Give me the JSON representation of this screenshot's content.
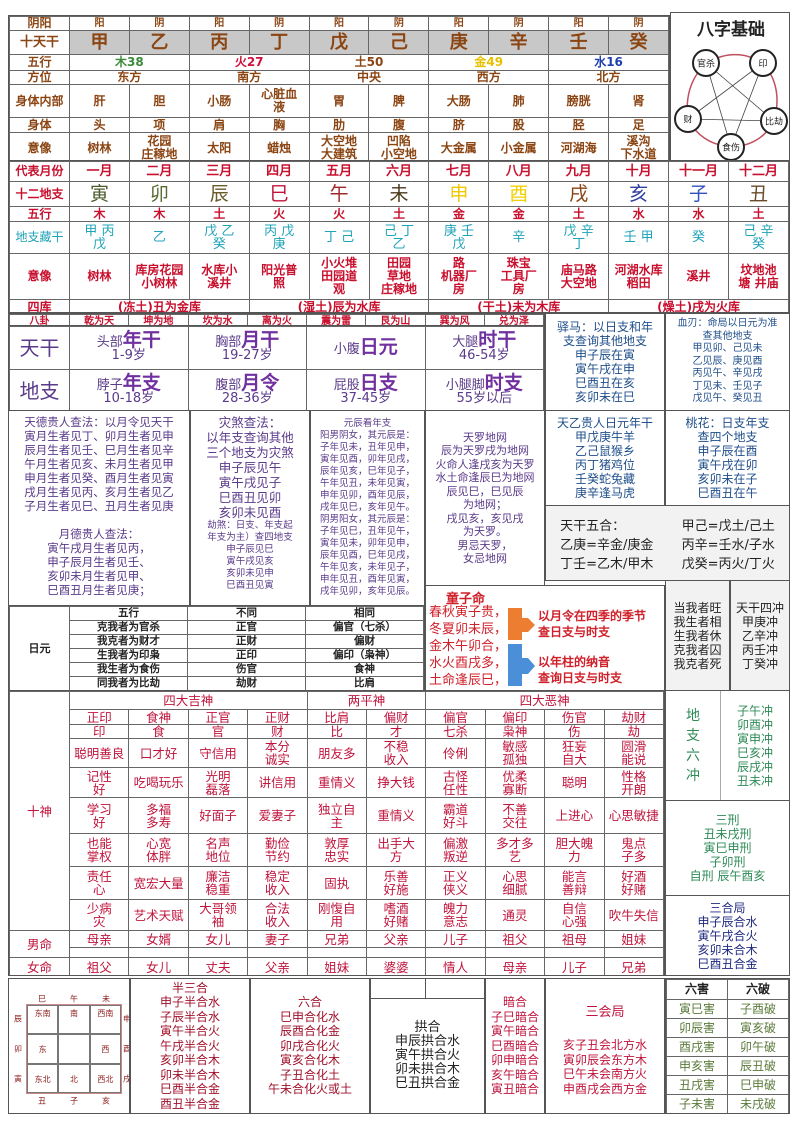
{
  "stems_table": {
    "rows": [
      {
        "label": "阴阳",
        "cells": [
          "阳",
          "阴",
          "阳",
          "阴",
          "阳",
          "阴",
          "阳",
          "阴",
          "阳",
          "阴"
        ]
      },
      {
        "label": "十天干",
        "cells": [
          "甲",
          "乙",
          "丙",
          "丁",
          "戊",
          "己",
          "庚",
          "辛",
          "壬",
          "癸"
        ]
      },
      {
        "label": "五行",
        "pairs": [
          {
            "text": "木38",
            "color": "#3a8a3a"
          },
          {
            "text": "火27",
            "color": "#d0103a"
          },
          {
            "text": "土50",
            "color": "#8b4513"
          },
          {
            "text": "金49",
            "color": "#e8c000"
          },
          {
            "text": "水16",
            "color": "#2040b0"
          }
        ]
      },
      {
        "label": "方位",
        "pairs": [
          {
            "text": "东方"
          },
          {
            "text": "南方"
          },
          {
            "text": "中央"
          },
          {
            "text": "西方"
          },
          {
            "text": "北方"
          }
        ]
      },
      {
        "label": "身体内部",
        "cells": [
          "肝",
          "胆",
          "小肠",
          "心脏血\n液",
          "胃",
          "脾",
          "大肠",
          "肺",
          "膀胱",
          "肾"
        ]
      },
      {
        "label": "身体",
        "cells": [
          "头",
          "项",
          "肩",
          "胸",
          "肋",
          "腹",
          "脐",
          "股",
          "胫",
          "足"
        ]
      },
      {
        "label": "意像",
        "cells": [
          "树林",
          "花园\n庄稼地",
          "太阳",
          "蜡烛",
          "大空地\n大建筑",
          "凹陷\n小空地",
          "大金属",
          "小金属",
          "河湖海",
          "溪沟\n下水道"
        ]
      }
    ]
  },
  "diagram": {
    "title": "八字基础",
    "nodes": [
      "官杀",
      "印",
      "比劫",
      "食伤",
      "财"
    ]
  },
  "branch_table": {
    "months": {
      "label": "代表月份",
      "cells": [
        "一月",
        "二月",
        "三月",
        "四月",
        "五月",
        "六月",
        "七月",
        "八月",
        "九月",
        "十月",
        "十一月",
        "十二月"
      ]
    },
    "branches": {
      "label": "十二地支",
      "cells": [
        {
          "text": "寅",
          "color": "#4a5a2a"
        },
        {
          "text": "卯",
          "color": "#556b2f"
        },
        {
          "text": "辰",
          "color": "#6b5a2a"
        },
        {
          "text": "巳",
          "color": "#c0143c"
        },
        {
          "text": "午",
          "color": "#a0282a"
        },
        {
          "text": "未",
          "color": "#4a3a1a"
        },
        {
          "text": "申",
          "color": "#f0c800"
        },
        {
          "text": "酉",
          "color": "#f0d000"
        },
        {
          "text": "戌",
          "color": "#8b4513"
        },
        {
          "text": "亥",
          "color": "#3040a0"
        },
        {
          "text": "子",
          "color": "#3050c0"
        },
        {
          "text": "丑",
          "color": "#6b4a2a"
        }
      ]
    },
    "elements": {
      "label": "五行",
      "cells": [
        "木",
        "木",
        "土",
        "火",
        "火",
        "土",
        "金",
        "金",
        "土",
        "水",
        "水",
        "土"
      ]
    },
    "hidden": {
      "label": "地支藏干",
      "cells": [
        "甲 丙\n戊",
        "乙",
        "戊 乙\n癸",
        "丙 戊\n庚",
        "丁 己",
        "己 丁\n乙",
        "庚 壬\n戊",
        "辛",
        "戊 辛\n丁",
        "壬 甲",
        "癸",
        "己 辛\n癸"
      ]
    },
    "imagery": {
      "label": "意像",
      "cells": [
        "树林",
        "库房花园\n小树林",
        "水库小\n溪井",
        "阳光普\n照",
        "小火堆\n田园道\n观",
        "田园\n草地\n庄稼地",
        "路\n机器厂\n房",
        "珠宝\n工具厂\n房",
        "庙马路\n大空地",
        "河湖水库\n稻田",
        "溪井",
        "坟地池\n塘 井庙"
      ]
    },
    "vaults": {
      "label": "四库",
      "cells": [
        "(冻土)丑为金库",
        "(湿土)辰为水库",
        "(干土)未为木库",
        "(燥土)戌为火库"
      ]
    }
  },
  "bagua": {
    "label": "八卦",
    "cells": [
      "乾为天",
      "坤为地",
      "坎为水",
      "离为火",
      "震为雷",
      "艮为山",
      "巽为风",
      "兑为泽"
    ]
  },
  "palaces": {
    "rows": [
      {
        "label": "天干",
        "cells": [
          {
            "part": "头部",
            "pillar": "年干",
            "age": "1-9岁"
          },
          {
            "part": "胸部",
            "pillar": "月干",
            "age": "19-27岁"
          },
          {
            "part": "小腹",
            "pillar": "日元",
            "age": ""
          },
          {
            "part": "大腿",
            "pillar": "时干",
            "age": "46-54岁"
          }
        ]
      },
      {
        "label": "地支",
        "cells": [
          {
            "part": "脖子",
            "pillar": "年支",
            "age": "10-18岁"
          },
          {
            "part": "腹部",
            "pillar": "月令",
            "age": "28-36岁"
          },
          {
            "part": "屁股",
            "pillar": "日支",
            "age": "37-45岁"
          },
          {
            "part": "小腿脚",
            "pillar": "时支",
            "age": "55岁以后"
          }
        ]
      }
    ]
  },
  "yima": {
    "lines": [
      "驿马：以日支和年",
      "支查询其他地支",
      "申子辰在寅",
      "寅午戌在申",
      "巳酉丑在亥",
      "亥卯未在巳"
    ]
  },
  "xueren": {
    "lines": [
      "血刃：命局以日元为准",
      "查其他地支",
      "甲见卯、己见未",
      "乙见辰、庚见酉",
      "丙见午、辛见戌",
      "丁见未、壬见子",
      "戊见午、癸见丑"
    ]
  },
  "tianyi": {
    "lines": [
      "天乙贵人日元年干",
      "甲戊庚牛羊",
      "乙己鼠猴乡",
      "丙丁猪鸡位",
      "壬癸蛇兔藏",
      "庚辛逢马虎"
    ]
  },
  "taohua": {
    "lines": [
      "桃花：日支年支",
      "查四个地支",
      "申子辰在酉",
      "寅午戌在卯",
      "亥卯未在子",
      "巳酉丑在午"
    ]
  },
  "tiande": {
    "lines": [
      "天德贵人查法：以月令见天干",
      "寅月生者见丁、卯月生者见申",
      "辰月生者见壬、巳月生者见辛",
      "午月生者见亥、未月生者见甲",
      "申月生者见癸、酉月生者见寅",
      "戌月生者见丙、亥月生者见乙",
      "子月生者见巳、丑月生者见庚"
    ],
    "lines2": [
      "月德贵人查法：",
      "寅午戌月生者见丙，",
      "申子辰月生者见壬、",
      "亥卯未月生者见甲、",
      "巳酉丑月生者见庚；"
    ]
  },
  "zaisha": {
    "lines": [
      "灾煞查法：",
      "以年支查询其他",
      "三个地支为灾煞",
      "申子辰见午",
      "寅午戌见子",
      "巳酉丑见卯",
      "亥卯未见酉"
    ],
    "lines2": [
      "劫煞：日支、年支起",
      "年支为主）查四地支",
      "申子辰见巳",
      "寅午戌见亥",
      "亥卯未见申",
      "巳酉丑见寅"
    ]
  },
  "yuanchen": {
    "lines": [
      "元辰看年支",
      "阳男阴女，其元辰是：",
      "子年见未，丑年见申，",
      "寅年见酉，卯年见戌，",
      "辰年见亥，巳年见子，",
      "午年见丑，未年见寅，",
      "申年见卯，酉年见辰，",
      "戌年见巳，亥年见午。",
      "阴男阳女，其元辰是：",
      "子年见巳，丑年见午，",
      "寅年见未，卯年见申，",
      "辰年见酉，巳年见戌，",
      "午年见亥，未年见子，",
      "申年见丑，酉年见寅，",
      "戌年见卯，亥年见辰。"
    ]
  },
  "tianluo": {
    "lines": [
      "天罗地网",
      "辰为天罗戌为地网",
      "火命人逢戌亥为天罗",
      "水土命逢辰巳为地网",
      "辰见巳，巳见辰",
      "为地网；",
      "戌见亥，亥见戌",
      "为天罗。",
      "男忌天罗，",
      "女忌地网"
    ]
  },
  "wuhe": {
    "left": [
      "天干五合：",
      "乙庚=辛金/庚金",
      "丁壬=乙木/甲木"
    ],
    "right": [
      "甲己=戊土/己土",
      "丙辛=壬水/子水",
      "戊癸=丙火/丁火"
    ]
  },
  "riyuan": {
    "label": "日元",
    "rows": [
      [
        "五行",
        "不同",
        "相同"
      ],
      [
        "克我者为官杀",
        "正官",
        "偏官（七杀）"
      ],
      [
        "我克者为财才",
        "正财",
        "偏财"
      ],
      [
        "生我者为印枭",
        "正印",
        "偏印（枭神）"
      ],
      [
        "我生者为食伤",
        "伤官",
        "食神"
      ],
      [
        "同我者为比劫",
        "劫财",
        "比肩"
      ]
    ]
  },
  "tongzi": {
    "title": "童子命",
    "lines": [
      "春秋寅子贵，",
      "冬夏卯未辰，",
      "金木午卯合，",
      "水火酉戌多，",
      "土命逢辰巳，"
    ],
    "note1": [
      "以月令在四季的季节",
      "查日支与时支"
    ],
    "note2": [
      "以年柱的纳音",
      "查询日支与时支"
    ],
    "colors": {
      "arrow1": "#ed7d31",
      "arrow2": "#4a8fd8"
    }
  },
  "wangxiang": {
    "lines": [
      "当我者旺",
      "我生者相",
      "生我者休",
      "克我者囚",
      "我克者死"
    ]
  },
  "sichong": {
    "lines": [
      "天干四冲",
      "甲庚冲",
      "乙辛冲",
      "丙壬冲",
      "丁癸冲"
    ]
  },
  "shishen": {
    "label": "十神",
    "groups": [
      "四大吉神",
      "两平神",
      "四大恶神"
    ],
    "names": [
      "正印",
      "食神",
      "正官",
      "正财",
      "比肩",
      "偏财",
      "偏官",
      "偏印",
      "伤官",
      "劫财"
    ],
    "short": [
      "印",
      "食",
      "官",
      "财",
      "比",
      "才",
      "七杀",
      "枭神",
      "伤",
      "劫"
    ],
    "traits": [
      [
        "聪明善良",
        "口才好",
        "守信用",
        "本分\n诚实",
        "朋友多",
        "不稳\n收入",
        "伶俐",
        "敏感\n孤独",
        "狂妄\n自大",
        "圆滑\n能说"
      ],
      [
        "记性\n好",
        "吃喝玩乐",
        "光明\n磊落",
        "讲信用",
        "重情义",
        "挣大钱",
        "古怪\n任性",
        "优柔\n寡断",
        "聪明",
        "性格\n开朗"
      ],
      [
        "学习\n好",
        "多福\n多寿",
        "好面子",
        "爱妻子",
        "独立自\n主",
        "重情义",
        "霸道\n好斗",
        "不善\n交往",
        "上进心",
        "心思敏捷"
      ],
      [
        "也能\n掌权",
        "心宽\n体胖",
        "名声\n地位",
        "勤俭\n节约",
        "敦厚\n忠实",
        "出手大\n方",
        "偏激\n叛逆",
        "多才多\n艺",
        "胆大魄\n力",
        "鬼点\n子多"
      ],
      [
        "责任\n心",
        "宽宏大量",
        "廉洁\n稳重",
        "稳定\n收入",
        "固执",
        "乐善\n好施",
        "正义\n侠义",
        "心思\n细腻",
        "能言\n善辩",
        "好酒\n好赌"
      ],
      [
        "少病\n灾",
        "艺术天赋",
        "大哥领\n袖",
        "合法\n收入",
        "刚愎自\n用",
        "嗜酒\n好赌",
        "魄力\n意志",
        "通灵",
        "自信\n心强",
        "吹牛失信"
      ]
    ],
    "male": {
      "label": "男命",
      "cells": [
        "母亲",
        "女婿",
        "女儿",
        "妻子",
        "兄弟",
        "父亲",
        "儿子",
        "祖父",
        "祖母",
        "姐妹"
      ]
    },
    "female": {
      "label": "女命",
      "cells": [
        "祖父",
        "女儿",
        "丈夫",
        "父亲",
        "姐妹",
        "婆婆",
        "情人",
        "母亲",
        "儿子",
        "兄弟"
      ]
    }
  },
  "liuchong": {
    "label": "地\n支\n六\n冲",
    "lines": [
      "子午冲",
      "卯酉冲",
      "寅申冲",
      "巳亥冲",
      "辰戌冲",
      "丑未冲"
    ]
  },
  "sanxing": {
    "lines": [
      "三刑",
      "丑未戌刑",
      "寅巳申刑",
      "子卯刑",
      "自刑  辰午酉亥"
    ]
  },
  "sanhe": {
    "lines": [
      "三合局",
      "申子辰合水",
      "寅午戌合火",
      "亥卯未合木",
      "巳酉丑合金"
    ]
  },
  "jiugong": {
    "top": [
      "巳",
      "午",
      "未"
    ],
    "bottom": [
      "丑",
      "子",
      "亥"
    ],
    "left": [
      "辰",
      "卯",
      "寅"
    ],
    "right": [
      "申",
      "酉",
      "戌"
    ],
    "cells": [
      "东南",
      "南",
      "西南",
      "东",
      "",
      "西",
      "东北",
      "北",
      "西北"
    ]
  },
  "bansanhe": {
    "lines": [
      "半三合",
      "申子半合水",
      "子辰半合水",
      "寅午半合火",
      "午戌半合火",
      "亥卯半合木",
      "卯未半合木",
      "巳酉半合金",
      "酉丑半合金"
    ]
  },
  "liuhe": {
    "lines": [
      "六合",
      "巳申合化水",
      "辰酉合化金",
      "卯戌合化火",
      "寅亥合化木",
      "子丑合化土",
      "午未合化火或土"
    ]
  },
  "gonghe": {
    "lines": [
      "拱合",
      "申辰拱合水",
      "寅午拱合火",
      "卯未拱合木",
      "巳丑拱合金"
    ]
  },
  "anhe": {
    "lines": [
      "暗合",
      "子巳暗合",
      "寅午暗合",
      "巳酉暗合",
      "卯申暗合",
      "亥午暗合",
      "寅丑暗合"
    ]
  },
  "sanhui": {
    "title": "三会局",
    "lines": [
      "亥子丑会北方水",
      "寅卯辰会东方木",
      "巳午未会南方火",
      "申酉戌会西方金"
    ]
  },
  "haipo": {
    "headers": [
      "六害",
      "六破"
    ],
    "rows": [
      [
        "寅巳害",
        "子酉破"
      ],
      [
        "卯辰害",
        "寅亥破"
      ],
      [
        "酉戌害",
        "卯午破"
      ],
      [
        "申亥害",
        "辰丑破"
      ],
      [
        "丑戌害",
        "巳申破"
      ],
      [
        "子未害",
        "未戌破"
      ]
    ]
  }
}
